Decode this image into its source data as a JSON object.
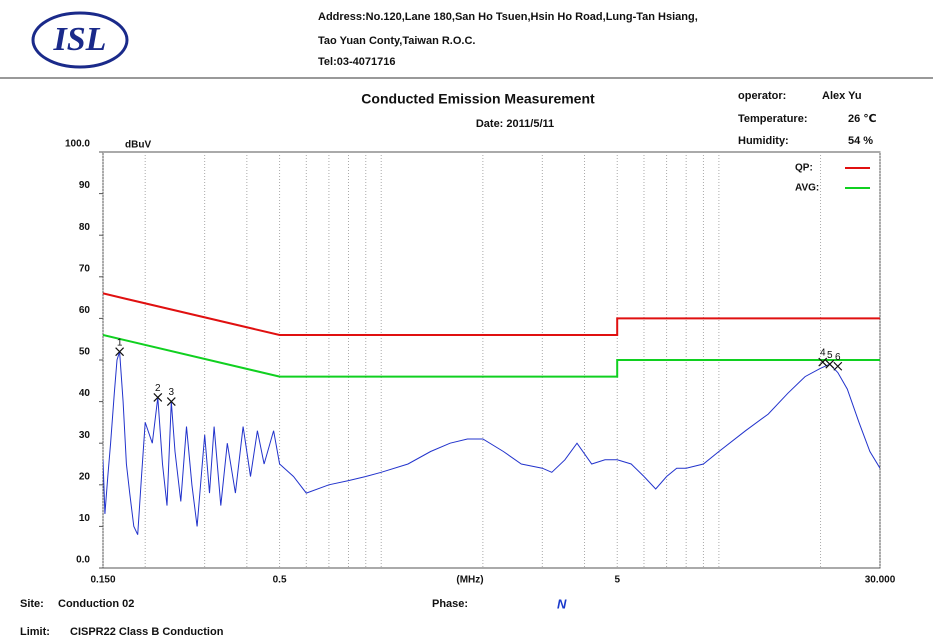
{
  "header": {
    "logo": "ISL",
    "address": [
      "Address:No.120,Lane 180,San Ho Tsuen,Hsin Ho Road,Lung-Tan Hsiang,",
      "Tao Yuan Conty,Taiwan R.O.C.",
      "Tel:03-4071716"
    ],
    "operator_label": "operator:",
    "operator": "Alex Yu",
    "temperature_label": "Temperature:",
    "temperature": "26 ℃",
    "humidity_label": "Humidity:",
    "humidity": "54 %"
  },
  "chart_data": {
    "type": "line",
    "title": "Conducted Emission Measurement",
    "subtitle": "Date: 2011/5/11",
    "ylabel": "dBuV",
    "xlabel": "(MHz)",
    "xscale": "log",
    "xlim": [
      0.15,
      30
    ],
    "xticks": [
      {
        "value": 0.15,
        "label": "0.150"
      },
      0.5,
      5,
      {
        "value": 30,
        "label": "30.000"
      }
    ],
    "x_minor_grid": [
      0.2,
      0.3,
      0.4,
      0.6,
      0.7,
      0.8,
      0.9,
      1,
      2,
      3,
      4,
      6,
      7,
      8,
      9,
      10,
      20
    ],
    "ylim": [
      0,
      100
    ],
    "yticks": [
      {
        "value": 100,
        "label": "100.0"
      },
      90,
      80,
      70,
      60,
      50,
      40,
      30,
      20,
      10,
      {
        "value": 0,
        "label": "0.0"
      }
    ],
    "grid": "x",
    "legend": "top-right",
    "series": [
      {
        "name": "QP:",
        "color": "#e01010",
        "x": [
          0.15,
          0.5,
          5,
          5,
          30
        ],
        "values": [
          66,
          56,
          56,
          60,
          60
        ]
      },
      {
        "name": "AVG:",
        "color": "#10d020",
        "x": [
          0.15,
          0.5,
          5,
          5,
          30
        ],
        "values": [
          56,
          46,
          46,
          50,
          50
        ]
      },
      {
        "color": "#2233cc",
        "x": [
          0.15,
          0.152,
          0.155,
          0.158,
          0.162,
          0.165,
          0.168,
          0.172,
          0.176,
          0.18,
          0.185,
          0.19,
          0.195,
          0.2,
          0.21,
          0.218,
          0.225,
          0.232,
          0.239,
          0.245,
          0.255,
          0.265,
          0.275,
          0.285,
          0.3,
          0.31,
          0.32,
          0.335,
          0.35,
          0.37,
          0.39,
          0.41,
          0.43,
          0.45,
          0.48,
          0.5,
          0.55,
          0.6,
          0.7,
          0.8,
          0.9,
          1,
          1.2,
          1.4,
          1.6,
          1.8,
          2,
          2.3,
          2.6,
          3,
          3.2,
          3.5,
          3.8,
          4.2,
          4.6,
          5,
          5.5,
          6,
          6.5,
          7,
          7.5,
          8,
          9,
          10,
          12,
          14,
          16,
          18,
          20,
          21.3,
          22.5,
          24,
          26,
          28,
          30
        ],
        "values": [
          26,
          13,
          22,
          30,
          42,
          50,
          52,
          40,
          25,
          18,
          10,
          8,
          22,
          35,
          30,
          41,
          25,
          15,
          40,
          28,
          16,
          34,
          20,
          10,
          32,
          18,
          34,
          15,
          30,
          18,
          34,
          22,
          33,
          25,
          33,
          25,
          22,
          18,
          20,
          21,
          22,
          23,
          25,
          28,
          30,
          31,
          31,
          28,
          25,
          24,
          23,
          26,
          30,
          25,
          26,
          26,
          25,
          22,
          19,
          22,
          24,
          24,
          25,
          28,
          33,
          37,
          42,
          46,
          48,
          49,
          47,
          43,
          35,
          28,
          24
        ]
      }
    ],
    "markers": [
      {
        "label": "1",
        "x": 0.168,
        "value": 52
      },
      {
        "label": "2",
        "x": 0.218,
        "value": 41
      },
      {
        "label": "3",
        "x": 0.239,
        "value": 40
      },
      {
        "label": "4",
        "x": 20.3,
        "value": 49.5
      },
      {
        "label": "5",
        "x": 21.3,
        "value": 49
      },
      {
        "label": "6",
        "x": 22.5,
        "value": 48.5
      }
    ]
  },
  "footer": {
    "site_label": "Site:",
    "site": "Conduction 02",
    "phase_label": "Phase:",
    "phase": "N",
    "limit_label": "Limit:",
    "limit": "CISPR22 Class B Conduction"
  }
}
